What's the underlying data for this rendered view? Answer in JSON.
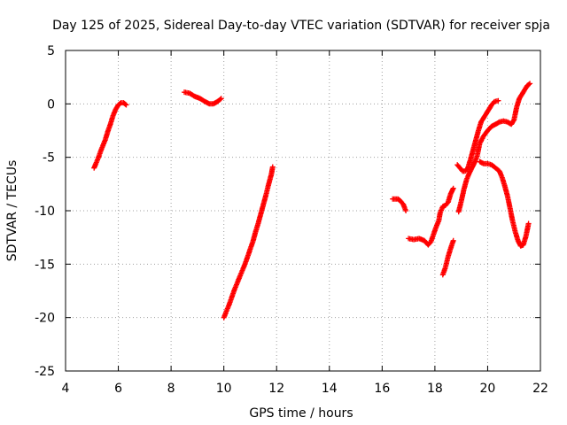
{
  "chart_data": {
    "type": "scatter",
    "title": "Day 125 of 2025, Sidereal Day-to-day VTEC variation (SDTVAR) for receiver spja",
    "xlabel": "GPS time / hours",
    "ylabel": "SDTVAR / TECUs",
    "xlim": [
      4,
      22
    ],
    "ylim": [
      -25,
      5
    ],
    "xticks": [
      4,
      6,
      8,
      10,
      12,
      14,
      16,
      18,
      20,
      22
    ],
    "yticks": [
      -25,
      -20,
      -15,
      -10,
      -5,
      0,
      5
    ],
    "xtick_labels": [
      "4",
      "6",
      "8",
      "10",
      "12",
      "14",
      "16",
      "18",
      "20",
      "22"
    ],
    "ytick_labels": [
      "-25",
      "-20",
      "-15",
      "-10",
      "-5",
      "0",
      "5"
    ],
    "grid": true,
    "marker": "plus",
    "color": "#ff0000",
    "segments": [
      [
        [
          5.08,
          -6.0
        ],
        [
          5.15,
          -5.6
        ],
        [
          5.25,
          -5.0
        ],
        [
          5.35,
          -4.3
        ],
        [
          5.5,
          -3.4
        ],
        [
          5.6,
          -2.6
        ],
        [
          5.7,
          -1.9
        ],
        [
          5.8,
          -1.1
        ],
        [
          5.9,
          -0.5
        ],
        [
          6.0,
          -0.1
        ],
        [
          6.1,
          0.1
        ],
        [
          6.2,
          0.1
        ],
        [
          6.3,
          -0.1
        ]
      ],
      [
        [
          8.5,
          1.1
        ],
        [
          8.7,
          1.0
        ],
        [
          8.9,
          0.7
        ],
        [
          9.1,
          0.5
        ],
        [
          9.3,
          0.2
        ],
        [
          9.45,
          0.0
        ],
        [
          9.6,
          0.0
        ],
        [
          9.75,
          0.2
        ],
        [
          9.9,
          0.5
        ]
      ],
      [
        [
          10.0,
          -20.0
        ],
        [
          10.1,
          -19.4
        ],
        [
          10.2,
          -18.8
        ],
        [
          10.3,
          -18.1
        ],
        [
          10.4,
          -17.4
        ],
        [
          10.5,
          -16.8
        ],
        [
          10.6,
          -16.2
        ],
        [
          10.7,
          -15.6
        ],
        [
          10.8,
          -15.0
        ],
        [
          10.9,
          -14.3
        ],
        [
          11.0,
          -13.6
        ],
        [
          11.1,
          -12.9
        ],
        [
          11.2,
          -12.0
        ],
        [
          11.3,
          -11.2
        ],
        [
          11.4,
          -10.3
        ],
        [
          11.5,
          -9.4
        ],
        [
          11.6,
          -8.5
        ],
        [
          11.7,
          -7.5
        ],
        [
          11.8,
          -6.6
        ],
        [
          11.85,
          -5.9
        ]
      ],
      [
        [
          16.4,
          -8.9
        ],
        [
          16.6,
          -8.9
        ],
        [
          16.7,
          -9.1
        ],
        [
          16.8,
          -9.4
        ],
        [
          16.9,
          -10.0
        ]
      ],
      [
        [
          17.0,
          -12.6
        ],
        [
          17.2,
          -12.7
        ],
        [
          17.4,
          -12.6
        ],
        [
          17.6,
          -12.8
        ],
        [
          17.75,
          -13.2
        ],
        [
          17.85,
          -12.9
        ],
        [
          17.95,
          -12.2
        ],
        [
          18.05,
          -11.5
        ],
        [
          18.15,
          -10.9
        ],
        [
          18.2,
          -10.2
        ],
        [
          18.3,
          -9.6
        ],
        [
          18.4,
          -9.5
        ],
        [
          18.5,
          -9.2
        ],
        [
          18.6,
          -8.4
        ],
        [
          18.7,
          -7.9
        ]
      ],
      [
        [
          18.3,
          -16.0
        ],
        [
          18.4,
          -15.3
        ],
        [
          18.5,
          -14.3
        ],
        [
          18.6,
          -13.5
        ],
        [
          18.7,
          -12.8
        ]
      ],
      [
        [
          18.9,
          -10.1
        ],
        [
          19.0,
          -9.1
        ],
        [
          19.1,
          -8.0
        ],
        [
          19.2,
          -7.1
        ],
        [
          19.3,
          -6.5
        ],
        [
          19.4,
          -6.0
        ],
        [
          19.5,
          -5.5
        ],
        [
          19.6,
          -4.9
        ],
        [
          19.7,
          -3.7
        ],
        [
          19.85,
          -3.0
        ],
        [
          20.0,
          -2.5
        ],
        [
          20.15,
          -2.1
        ],
        [
          20.3,
          -1.9
        ],
        [
          20.45,
          -1.7
        ],
        [
          20.6,
          -1.6
        ],
        [
          20.75,
          -1.7
        ],
        [
          20.9,
          -1.9
        ],
        [
          21.0,
          -1.5
        ],
        [
          21.1,
          -0.3
        ],
        [
          21.2,
          0.5
        ],
        [
          21.35,
          1.1
        ],
        [
          21.5,
          1.7
        ],
        [
          21.6,
          1.9
        ]
      ],
      [
        [
          18.85,
          -5.7
        ],
        [
          18.95,
          -6.0
        ],
        [
          19.05,
          -6.3
        ],
        [
          19.15,
          -6.3
        ],
        [
          19.25,
          -6.0
        ],
        [
          19.35,
          -5.2
        ],
        [
          19.45,
          -4.3
        ],
        [
          19.55,
          -3.4
        ],
        [
          19.65,
          -2.5
        ],
        [
          19.75,
          -1.7
        ],
        [
          19.85,
          -1.3
        ],
        [
          19.95,
          -0.9
        ],
        [
          20.05,
          -0.5
        ],
        [
          20.15,
          -0.1
        ],
        [
          20.25,
          0.2
        ],
        [
          20.4,
          0.3
        ]
      ],
      [
        [
          19.7,
          -5.4
        ],
        [
          19.85,
          -5.6
        ],
        [
          20.0,
          -5.6
        ],
        [
          20.15,
          -5.7
        ],
        [
          20.3,
          -6.0
        ],
        [
          20.45,
          -6.3
        ],
        [
          20.55,
          -6.9
        ],
        [
          20.65,
          -7.7
        ],
        [
          20.75,
          -8.6
        ],
        [
          20.85,
          -9.8
        ],
        [
          20.95,
          -11.0
        ],
        [
          21.05,
          -12.0
        ],
        [
          21.15,
          -12.8
        ],
        [
          21.25,
          -13.3
        ],
        [
          21.35,
          -13.2
        ],
        [
          21.45,
          -12.4
        ],
        [
          21.55,
          -11.2
        ]
      ]
    ]
  }
}
